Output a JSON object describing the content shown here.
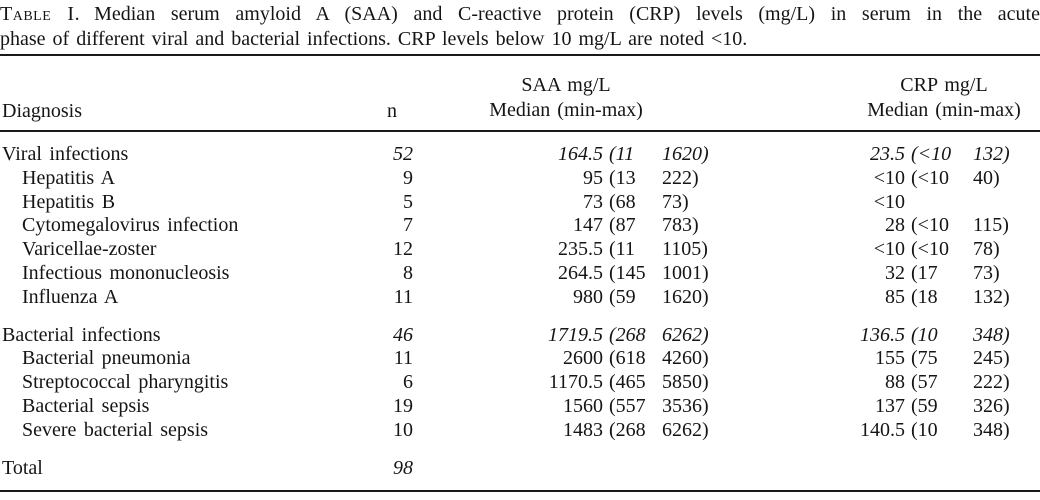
{
  "caption": {
    "label": "Table I.",
    "line1": "Median serum amyloid A (SAA) and C-reactive protein (CRP) levels (mg/L) in serum in the acute",
    "line2": "phase of different viral and bacterial infections. CRP levels below 10 mg/L are noted <10."
  },
  "header": {
    "diagnosis": "Diagnosis",
    "n": "n",
    "saa_line1": "SAA mg/L",
    "saa_line2": "Median (min-max)",
    "crp_line1": "CRP mg/L",
    "crp_line2": "Median (min-max)"
  },
  "chart_data": {
    "type": "table",
    "title": "Table I. Median serum amyloid A (SAA) and C-reactive protein (CRP) levels (mg/L) in serum in the acute phase of different viral and bacterial infections. CRP levels below 10 mg/L are noted <10.",
    "columns": [
      "Diagnosis",
      "n",
      "SAA mg/L Median (min-max)",
      "CRP mg/L Median (min-max)"
    ]
  },
  "rows": [
    {
      "label": "Viral infections",
      "n": "52",
      "saa_med": "164.5",
      "saa_min": "(11",
      "saa_max": "1620)",
      "crp_med": "23.5",
      "crp_min": "(<10",
      "crp_max": "132)"
    },
    {
      "label": "Hepatitis A",
      "n": "9",
      "saa_med": "95",
      "saa_min": "(13",
      "saa_max": "222)",
      "crp_med": "<10",
      "crp_min": "(<10",
      "crp_max": "40)"
    },
    {
      "label": "Hepatitis B",
      "n": "5",
      "saa_med": "73",
      "saa_min": "(68",
      "saa_max": "73)",
      "crp_med": "<10",
      "crp_min": "",
      "crp_max": ""
    },
    {
      "label": "Cytomegalovirus infection",
      "n": "7",
      "saa_med": "147",
      "saa_min": "(87",
      "saa_max": "783)",
      "crp_med": "28",
      "crp_min": "(<10",
      "crp_max": "115)"
    },
    {
      "label": "Varicellae-zoster",
      "n": "12",
      "saa_med": "235.5",
      "saa_min": "(11",
      "saa_max": "1105)",
      "crp_med": "<10",
      "crp_min": "(<10",
      "crp_max": "78)"
    },
    {
      "label": "Infectious mononucleosis",
      "n": "8",
      "saa_med": "264.5",
      "saa_min": "(145",
      "saa_max": "1001)",
      "crp_med": "32",
      "crp_min": "(17",
      "crp_max": "73)"
    },
    {
      "label": "Influenza A",
      "n": "11",
      "saa_med": "980",
      "saa_min": "(59",
      "saa_max": "1620)",
      "crp_med": "85",
      "crp_min": "(18",
      "crp_max": "132)"
    },
    {
      "label": "Bacterial infections",
      "n": "46",
      "saa_med": "1719.5",
      "saa_min": "(268",
      "saa_max": "6262)",
      "crp_med": "136.5",
      "crp_min": "(10",
      "crp_max": "348)"
    },
    {
      "label": "Bacterial pneumonia",
      "n": "11",
      "saa_med": "2600",
      "saa_min": "(618",
      "saa_max": "4260)",
      "crp_med": "155",
      "crp_min": "(75",
      "crp_max": "245)"
    },
    {
      "label": "Streptococcal pharyngitis",
      "n": "6",
      "saa_med": "1170.5",
      "saa_min": "(465",
      "saa_max": "5850)",
      "crp_med": "88",
      "crp_min": "(57",
      "crp_max": "222)"
    },
    {
      "label": "Bacterial sepsis",
      "n": "19",
      "saa_med": "1560",
      "saa_min": "(557",
      "saa_max": "3536)",
      "crp_med": "137",
      "crp_min": "(59",
      "crp_max": "326)"
    },
    {
      "label": "Severe bacterial sepsis",
      "n": "10",
      "saa_med": "1483",
      "saa_min": "(268",
      "saa_max": "6262)",
      "crp_med": "140.5",
      "crp_min": "(10",
      "crp_max": "348)"
    },
    {
      "label": "Total",
      "n": "98",
      "saa_med": "",
      "saa_min": "",
      "saa_max": "",
      "crp_med": "",
      "crp_min": "",
      "crp_max": ""
    }
  ]
}
